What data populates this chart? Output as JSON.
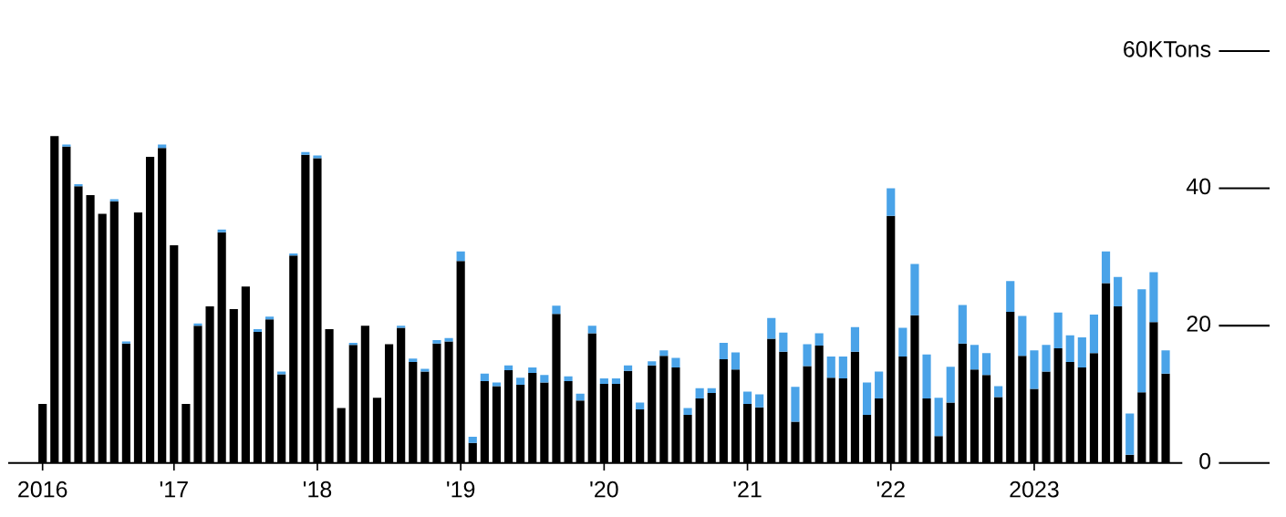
{
  "chart_data": {
    "type": "bar",
    "stacked": true,
    "categories": [
      "2016",
      null,
      null,
      null,
      null,
      null,
      null,
      null,
      null,
      null,
      null,
      "'17",
      null,
      null,
      null,
      null,
      null,
      null,
      null,
      null,
      null,
      null,
      null,
      "'18",
      null,
      null,
      null,
      null,
      null,
      null,
      null,
      null,
      null,
      null,
      null,
      "'19",
      null,
      null,
      null,
      null,
      null,
      null,
      null,
      null,
      null,
      null,
      null,
      "'20",
      null,
      null,
      null,
      null,
      null,
      null,
      null,
      null,
      null,
      null,
      null,
      "'21",
      null,
      null,
      null,
      null,
      null,
      null,
      null,
      null,
      null,
      null,
      null,
      "'22",
      null,
      null,
      null,
      null,
      null,
      null,
      null,
      null,
      null,
      null,
      null,
      "2023",
      null,
      null,
      null,
      null,
      null,
      null,
      null,
      null,
      null,
      null,
      null
    ],
    "series": [
      {
        "color": "#000000",
        "values": [
          8.6,
          47.6,
          46.1,
          40.3,
          39.0,
          36.3,
          38.1,
          17.4,
          36.5,
          44.6,
          45.9,
          31.7,
          8.6,
          20.0,
          22.8,
          33.6,
          22.4,
          25.7,
          19.1,
          20.9,
          12.9,
          30.2,
          44.9,
          44.4,
          19.5,
          8.0,
          17.2,
          20.0,
          9.5,
          17.3,
          19.7,
          14.7,
          13.3,
          17.4,
          17.7,
          29.4,
          2.9,
          11.9,
          11.2,
          13.5,
          11.4,
          13.1,
          11.7,
          21.7,
          11.9,
          9.1,
          18.9,
          11.5,
          11.5,
          13.4,
          7.8,
          14.2,
          15.6,
          13.9,
          7.0,
          9.4,
          10.2,
          15.1,
          13.6,
          8.6,
          8.1,
          18.1,
          16.2,
          6.0,
          14.1,
          17.1,
          12.4,
          12.3,
          16.2,
          7.0,
          9.4,
          36.0,
          15.5,
          21.5,
          9.4,
          3.9,
          8.8,
          17.4,
          13.6,
          12.8,
          9.6,
          22.0,
          15.6,
          10.8,
          13.3,
          16.7,
          14.7,
          13.9,
          16.0,
          26.2,
          22.8,
          1.2,
          10.3,
          20.5,
          13.0
        ]
      },
      {
        "color": "#4aa3e8",
        "values": [
          0,
          0,
          0.3,
          0.3,
          0,
          0,
          0.3,
          0.3,
          0,
          0,
          0.5,
          0,
          0,
          0.3,
          0,
          0.4,
          0,
          0,
          0.4,
          0.4,
          0.4,
          0.3,
          0.4,
          0.4,
          0,
          0,
          0.3,
          0,
          0,
          0,
          0.3,
          0.5,
          0.4,
          0.5,
          0.5,
          1.4,
          0.9,
          1.1,
          0.5,
          0.7,
          1.0,
          0.8,
          1.1,
          1.2,
          0.7,
          1.0,
          1.1,
          0.8,
          0.8,
          0.8,
          1.0,
          0.6,
          0.8,
          1.4,
          1.0,
          1.5,
          0.7,
          2.4,
          2.5,
          1.8,
          1.9,
          3.0,
          2.8,
          5.1,
          3.2,
          1.8,
          3.1,
          3.2,
          3.6,
          4.7,
          3.9,
          4.0,
          4.2,
          7.5,
          6.4,
          5.6,
          5.2,
          5.6,
          3.6,
          3.2,
          1.6,
          4.5,
          5.8,
          5.6,
          3.9,
          5.2,
          3.9,
          4.4,
          5.6,
          4.6,
          4.3,
          6.0,
          15.0,
          7.3,
          3.4
        ]
      }
    ],
    "ylim": [
      0,
      60
    ],
    "yticks": [
      0,
      20,
      40,
      {
        "value": 60,
        "label": "60KTons"
      }
    ],
    "grid": false,
    "legend": false
  }
}
